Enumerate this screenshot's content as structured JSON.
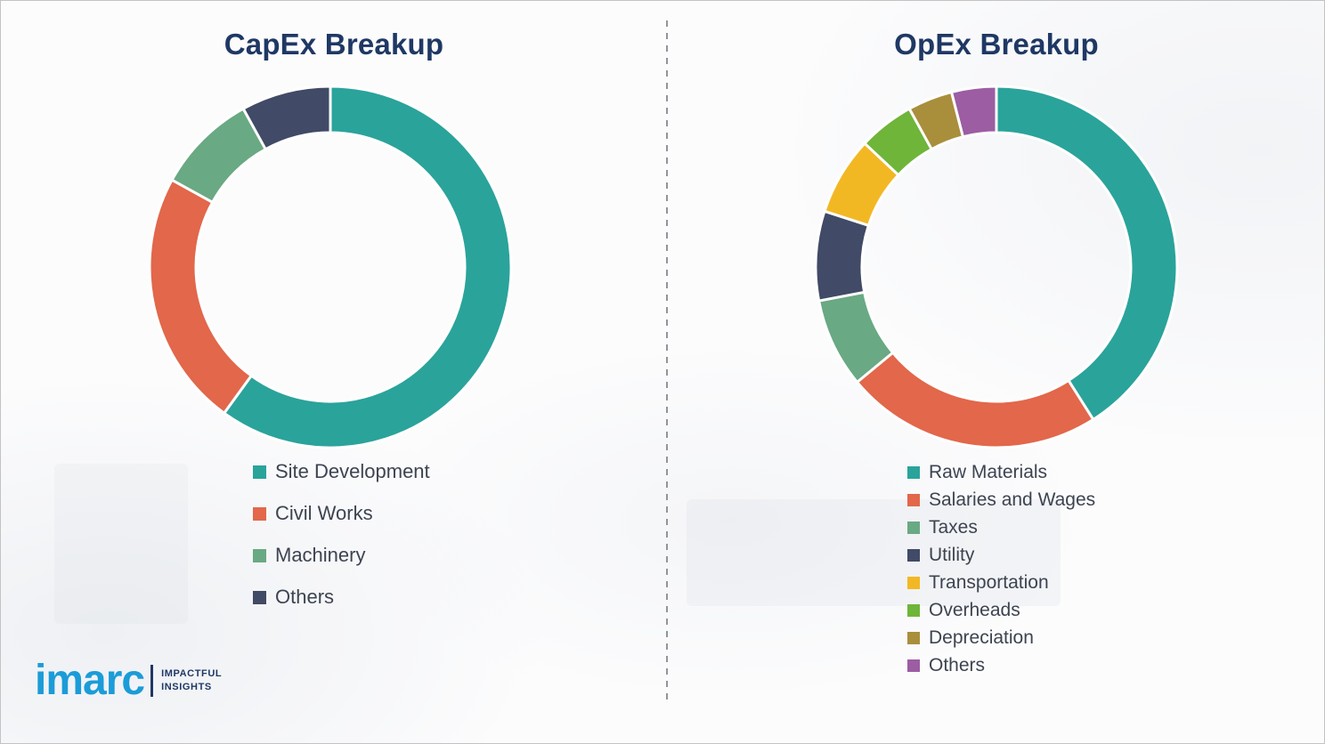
{
  "theme": {
    "title_color": "#1F3864",
    "legend_text_color": "#3d4451",
    "background_color": "#fcfcfd",
    "brand_blue": "#1b9cd8"
  },
  "chart_data": [
    {
      "type": "pie",
      "subtype": "donut",
      "title": "CapEx Breakup",
      "legend_position": "below",
      "segments": [
        {
          "label": "Site Development",
          "value": 60,
          "color": "#2aa39b"
        },
        {
          "label": "Civil Works",
          "value": 23,
          "color": "#e2674b"
        },
        {
          "label": "Machinery",
          "value": 9,
          "color": "#69a983"
        },
        {
          "label": "Others",
          "value": 8,
          "color": "#414a66"
        }
      ]
    },
    {
      "type": "pie",
      "subtype": "donut",
      "title": "OpEx Breakup",
      "legend_position": "below",
      "segments": [
        {
          "label": "Raw Materials",
          "value": 41,
          "color": "#2aa39b"
        },
        {
          "label": "Salaries and Wages",
          "value": 23,
          "color": "#e2674b"
        },
        {
          "label": "Taxes",
          "value": 8,
          "color": "#69a983"
        },
        {
          "label": "Utility",
          "value": 8,
          "color": "#414a66"
        },
        {
          "label": "Transportation",
          "value": 7,
          "color": "#f2b824"
        },
        {
          "label": "Overheads",
          "value": 5,
          "color": "#6fb53a"
        },
        {
          "label": "Depreciation",
          "value": 4,
          "color": "#a98e3c"
        },
        {
          "label": "Others",
          "value": 4,
          "color": "#9c5da3"
        }
      ]
    }
  ],
  "logo": {
    "brand": "imarc",
    "tagline": [
      "IMPACTFUL",
      "INSIGHTS"
    ]
  }
}
